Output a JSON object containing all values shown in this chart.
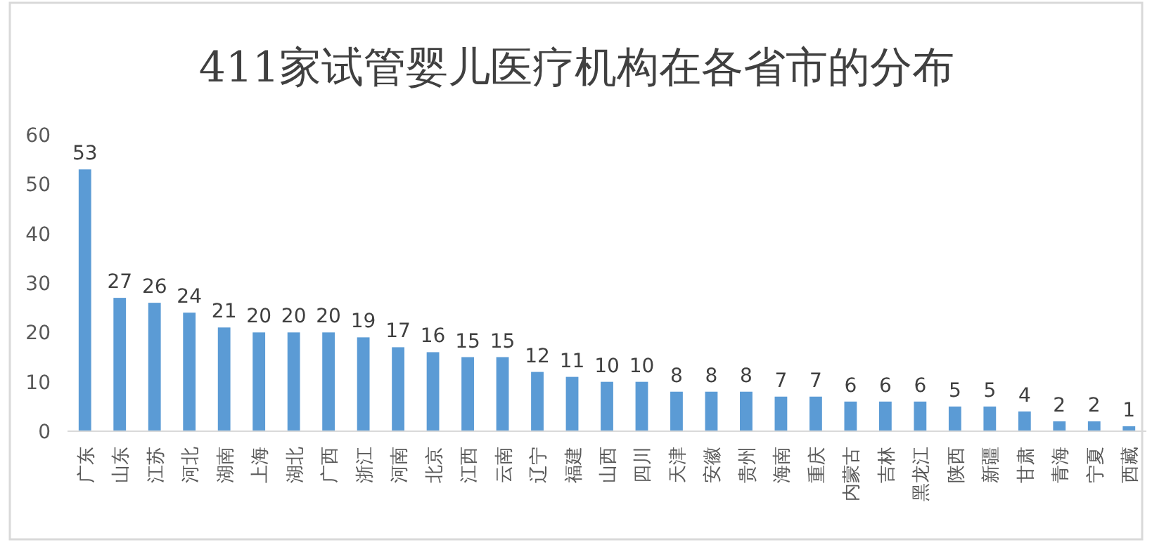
{
  "chart_data": {
    "type": "bar",
    "title": "411家试管婴儿医疗机构在各省市的分布",
    "categories": [
      "广东",
      "山东",
      "江苏",
      "河北",
      "湖南",
      "上海",
      "湖北",
      "广西",
      "浙江",
      "河南",
      "北京",
      "江西",
      "云南",
      "辽宁",
      "福建",
      "山西",
      "四川",
      "天津",
      "安徽",
      "贵州",
      "海南",
      "重庆",
      "内蒙古",
      "吉林",
      "黑龙江",
      "陕西",
      "新疆",
      "甘肃",
      "青海",
      "宁夏",
      "西藏"
    ],
    "values": [
      53,
      27,
      26,
      24,
      21,
      20,
      20,
      20,
      19,
      17,
      16,
      15,
      15,
      12,
      11,
      10,
      10,
      8,
      8,
      8,
      7,
      7,
      6,
      6,
      6,
      5,
      5,
      4,
      2,
      2,
      1
    ],
    "color": "#5b9bd5",
    "ylim": [
      0,
      60
    ],
    "yticks": [
      0,
      10,
      20,
      30,
      40,
      50,
      60
    ],
    "data_labels": true
  }
}
